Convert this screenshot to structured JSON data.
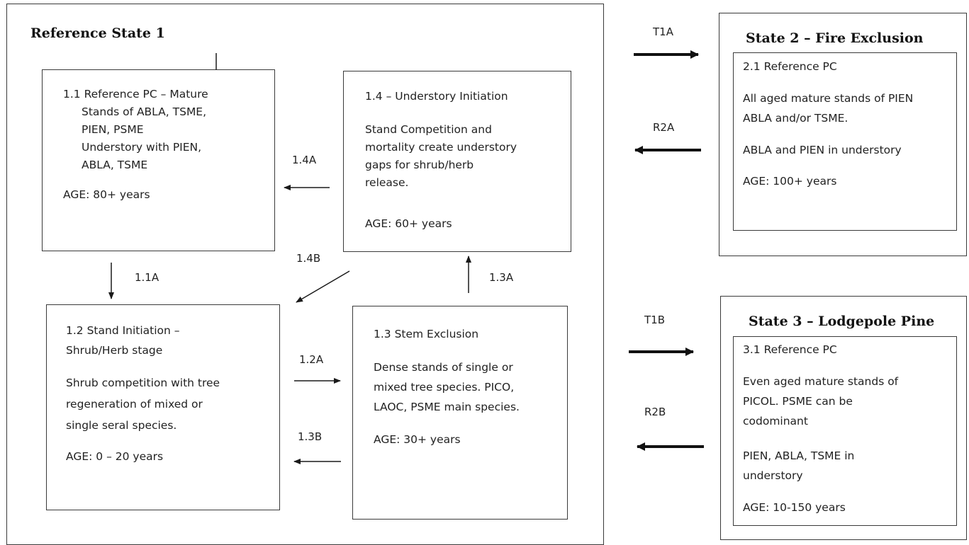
{
  "state1": {
    "title": "Reference State 1",
    "box_1_1": {
      "line1": "1.1  Reference PC – Mature",
      "line2": "Stands of ABLA, TSME,",
      "line3": "PIEN, PSME",
      "line4": "Understory with PIEN,",
      "line5": "ABLA, TSME",
      "age": "AGE: 80+ years"
    },
    "box_1_4": {
      "title": "1.4 – Understory Initiation",
      "line1": "Stand Competition and",
      "line2": "mortality create understory",
      "line3": "gaps for shrub/herb",
      "line4": "release.",
      "age": "AGE: 60+ years"
    },
    "box_1_2": {
      "line1": "1.2 Stand Initiation –",
      "line2": "Shrub/Herb stage",
      "line3": "Shrub competition with tree",
      "line4": "regeneration of mixed or",
      "line5": "single seral species.",
      "age": "AGE: 0 – 20 years"
    },
    "box_1_3": {
      "title": "1.3 Stem Exclusion",
      "line1": "Dense stands of single or",
      "line2": "mixed tree species. PICO,",
      "line3": "LAOC, PSME main species.",
      "age": "AGE: 30+ years"
    },
    "pathways": {
      "p_1_4A": "1.4A",
      "p_1_4B": "1.4B",
      "p_1_1A": "1.1A",
      "p_1_3A": "1.3A",
      "p_1_2A": "1.2A",
      "p_1_3B": "1.3B"
    }
  },
  "transitions": {
    "t1a": "T1A",
    "r2a": "R2A",
    "t1b": "T1B",
    "r2b": "R2B"
  },
  "state2": {
    "title": "State 2 – Fire Exclusion",
    "heading": "2.1 Reference PC",
    "line1": "All aged mature stands of PIEN",
    "line2": "ABLA and/or TSME.",
    "line3": "ABLA and PIEN in understory",
    "age": "AGE: 100+ years"
  },
  "state3": {
    "title": "State 3 – Lodgepole Pine",
    "heading": "3.1 Reference PC",
    "line1": "Even aged mature stands of",
    "line2": "PICOL. PSME can be",
    "line3": "codominant",
    "line4": "PIEN, ABLA, TSME in",
    "line5": "understory",
    "age": "AGE: 10-150 years"
  }
}
